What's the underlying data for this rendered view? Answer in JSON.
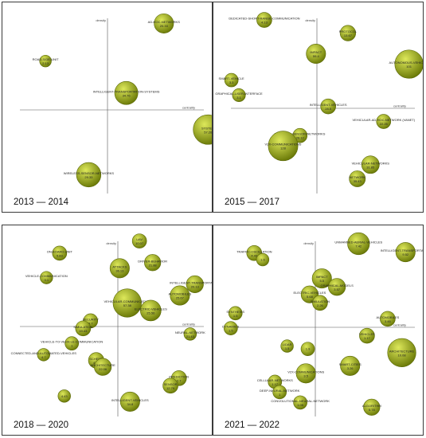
{
  "colors": {
    "bubble_light": "#dde85a",
    "bubble_dark": "#6b7a08",
    "bubble_stroke": "#5a6806",
    "axis": "#555555",
    "border": "#3a3a3a"
  },
  "axis_labels": {
    "x": "centrality",
    "y": "density"
  },
  "chart_data": [
    {
      "type": "scatter",
      "period": "2013 — 2014",
      "xlabel": "centrality",
      "ylabel": "density",
      "themes": [
        {
          "label": "AD-HOC-NETWORKS",
          "value": "20.33",
          "x": 0.6,
          "y": 0.92,
          "size": 0.45
        },
        {
          "label": "ROAD-SIDE-UNIT",
          "value": "2.13",
          "x": -0.66,
          "y": 0.52,
          "size": 0.15
        },
        {
          "label": "INTELLIGENT-TRANSPORTATION-SYSTEMS",
          "value": "34.76",
          "x": 0.2,
          "y": 0.18,
          "size": 0.6
        },
        {
          "label": "SYSTEM",
          "value": "57.26",
          "x": 1.07,
          "y": -0.21,
          "size": 0.85
        },
        {
          "label": "WIRELESS-SENSOR-NETWORKS",
          "value": "29.33",
          "x": -0.2,
          "y": -0.69,
          "size": 0.65
        }
      ]
    },
    {
      "type": "scatter",
      "period": "2015 — 2017",
      "xlabel": "centrality",
      "ylabel": "density",
      "themes": [
        {
          "label": "DEDICATED-SHORT-RANGE-COMMUNICATION",
          "value": "4.13",
          "x": -0.56,
          "y": 0.94,
          "size": 0.28
        },
        {
          "label": "PROTOCOL",
          "value": "13.67",
          "x": 0.33,
          "y": 0.8,
          "size": 0.3
        },
        {
          "label": "IMPACT",
          "value": "59.4",
          "x": -0.01,
          "y": 0.58,
          "size": 0.45
        },
        {
          "label": "AUTONOMOUS-VEHICLES",
          "value": "101",
          "x": 0.98,
          "y": 0.47,
          "size": 0.8
        },
        {
          "label": "SMART-VEHICLE",
          "value": "3.3",
          "x": -0.91,
          "y": 0.3,
          "size": 0.22
        },
        {
          "label": "GRAPHICAL-USER-INTERFACE",
          "value": "3.1",
          "x": -0.83,
          "y": 0.14,
          "size": 0.2
        },
        {
          "label": "INTELLIGENT-VEHICLES",
          "value": "28.5",
          "x": 0.12,
          "y": 0.02,
          "size": 0.28
        },
        {
          "label": "VEHICULAR-AD-HOC-NETWORK (VANET)",
          "value": "22.25",
          "x": 0.71,
          "y": -0.14,
          "size": 0.25
        },
        {
          "label": "WIRELESS-SENSOR-NETWORKS",
          "value": "26.12",
          "x": -0.18,
          "y": -0.29,
          "size": 0.25
        },
        {
          "label": "V2X-COMMUNICATIONS",
          "value": "128",
          "x": -0.36,
          "y": -0.4,
          "size": 0.85
        },
        {
          "label": "VEHICULAR-NETWORKS",
          "value": "31.85",
          "x": 0.57,
          "y": -0.6,
          "size": 0.38
        },
        {
          "label": "NETWORK",
          "value": "35.43",
          "x": 0.43,
          "y": -0.75,
          "size": 0.32
        }
      ]
    },
    {
      "type": "scatter",
      "period": "2018 — 2020",
      "xlabel": "centrality",
      "ylabel": "density",
      "themes": [
        {
          "label": "UAV",
          "value": "10.07",
          "x": 0.23,
          "y": 0.91,
          "size": 0.25
        },
        {
          "label": "ON-BOARD-UNIT",
          "value": "5.83",
          "x": -0.62,
          "y": 0.78,
          "size": 0.25
        },
        {
          "label": "DRIVER-BEHAVIOR",
          "value": "21.88",
          "x": 0.37,
          "y": 0.68,
          "size": 0.33
        },
        {
          "label": "ATTACKS",
          "value": "36.13",
          "x": 0.02,
          "y": 0.62,
          "size": 0.45
        },
        {
          "label": "VEHICLE-COMMUNICATION",
          "value": "3.1",
          "x": -0.76,
          "y": 0.52,
          "size": 0.18
        },
        {
          "label": "INTELLIGENT-TRANSPORTATION",
          "value": "20.13",
          "x": 0.82,
          "y": 0.45,
          "size": 0.36
        },
        {
          "label": "AUTOMOBILES",
          "value": "25.67",
          "x": 0.66,
          "y": 0.33,
          "size": 0.45
        },
        {
          "label": "VEHICULAR-COMMUNICATION",
          "value": "57.38",
          "x": 0.1,
          "y": 0.25,
          "size": 0.8
        },
        {
          "label": "ELECTRIC-VEHICLES",
          "value": "25.56",
          "x": 0.35,
          "y": 0.17,
          "size": 0.5
        },
        {
          "label": "SECURITY",
          "value": "9.7",
          "x": -0.29,
          "y": 0.06,
          "size": 0.25
        },
        {
          "label": "SIMULATION",
          "value": "19.43",
          "x": -0.37,
          "y": -0.02,
          "size": 0.28
        },
        {
          "label": "NEURAL-NETWORK",
          "value": "21.43",
          "x": 0.77,
          "y": -0.08,
          "size": 0.18
        },
        {
          "label": "VEHICLE-TO-VEHICLE-COMMUNICATION",
          "value": "1",
          "x": -0.49,
          "y": -0.18,
          "size": 0.22
        },
        {
          "label": "CONNECTED-AND-AUTOMATED-VEHICLES",
          "value": "4.7",
          "x": -0.79,
          "y": -0.3,
          "size": 0.18
        },
        {
          "label": "SCHEME",
          "value": "41.6",
          "x": -0.23,
          "y": -0.36,
          "size": 0.3
        },
        {
          "label": "ARCHITECTURE",
          "value": "22.06",
          "x": -0.16,
          "y": -0.43,
          "size": 0.36
        },
        {
          "label": "PREDICTION",
          "value": "2.7",
          "x": 0.65,
          "y": -0.55,
          "size": 0.28
        },
        {
          "label": "SENSOR",
          "value": "12.79",
          "x": 0.56,
          "y": -0.63,
          "size": 0.28
        },
        {
          "label": "",
          "value": "4.43",
          "x": -0.57,
          "y": -0.74,
          "size": 0.18
        },
        {
          "label": "INTELLIGENT-VEHICLES",
          "value": "34.8",
          "x": 0.13,
          "y": -0.8,
          "size": 0.45
        }
      ]
    },
    {
      "type": "scatter",
      "period": "2021 — 2022",
      "xlabel": "centrality",
      "ylabel": "density",
      "themes": [
        {
          "label": "UNMANNED-AERIAL-VEHICLES",
          "value": "7.42",
          "x": 0.46,
          "y": 0.89,
          "size": 0.55
        },
        {
          "label": "INTELLIGENT-TRANSPORTATION",
          "value": "9.52",
          "x": 0.96,
          "y": 0.8,
          "size": 0.45
        },
        {
          "label": "TRAFFIC-OSCILLATION",
          "value": "4.43",
          "x": -0.65,
          "y": 0.79,
          "size": 0.28
        },
        {
          "label": "",
          "value": "1.6",
          "x": -0.56,
          "y": 0.72,
          "size": 0.18
        },
        {
          "label": "IMPACT",
          "value": "5.5",
          "x": 0.07,
          "y": 0.52,
          "size": 0.45
        },
        {
          "label": "GRAPHICAL-MODELS",
          "value": "3.57",
          "x": 0.23,
          "y": 0.43,
          "size": 0.36
        },
        {
          "label": "ELECTRIC-VEHICLES",
          "value": "5.68",
          "x": -0.06,
          "y": 0.35,
          "size": 0.36
        },
        {
          "label": "SIMULATION",
          "value": "2.26",
          "x": 0.05,
          "y": 0.26,
          "size": 0.28
        },
        {
          "label": "SYNTHESIS",
          "value": "1.5",
          "x": -0.85,
          "y": 0.15,
          "size": 0.22
        },
        {
          "label": "AUTOMOBILES",
          "value": "3.46",
          "x": 0.77,
          "y": 0.09,
          "size": 0.28
        },
        {
          "label": "DYNAMICS",
          "value": "1.5",
          "x": -0.9,
          "y": -0.01,
          "size": 0.22
        },
        {
          "label": "VEHICLES",
          "value": "1.17",
          "x": 0.55,
          "y": -0.09,
          "size": 0.28
        },
        {
          "label": "LIDAR",
          "value": "1.5",
          "x": -0.3,
          "y": -0.2,
          "size": 0.18
        },
        {
          "label": "",
          "value": "1.9",
          "x": -0.08,
          "y": -0.23,
          "size": 0.22
        },
        {
          "label": "ARCHITECTURE",
          "value": "10.08",
          "x": 0.92,
          "y": -0.27,
          "size": 0.8
        },
        {
          "label": "SMART-CITIES",
          "value": "3.26",
          "x": 0.37,
          "y": -0.41,
          "size": 0.45
        },
        {
          "label": "V2X-COMMUNICATIONS",
          "value": "3.5",
          "x": -0.1,
          "y": -0.49,
          "size": 0.45
        },
        {
          "label": "CELLULAR-NETWORKS",
          "value": "1.17",
          "x": -0.43,
          "y": -0.58,
          "size": 0.22
        },
        {
          "label": "DEEP-NEURAL-NETWORK",
          "value": "1",
          "x": -0.38,
          "y": -0.69,
          "size": 0.22
        },
        {
          "label": "CONVOLUTIONAL-NEURAL-NETWORK",
          "value": "1.05",
          "x": -0.16,
          "y": -0.8,
          "size": 0.22
        },
        {
          "label": "ALGORITHM",
          "value": "5.78",
          "x": 0.6,
          "y": -0.85,
          "size": 0.33
        }
      ]
    }
  ]
}
